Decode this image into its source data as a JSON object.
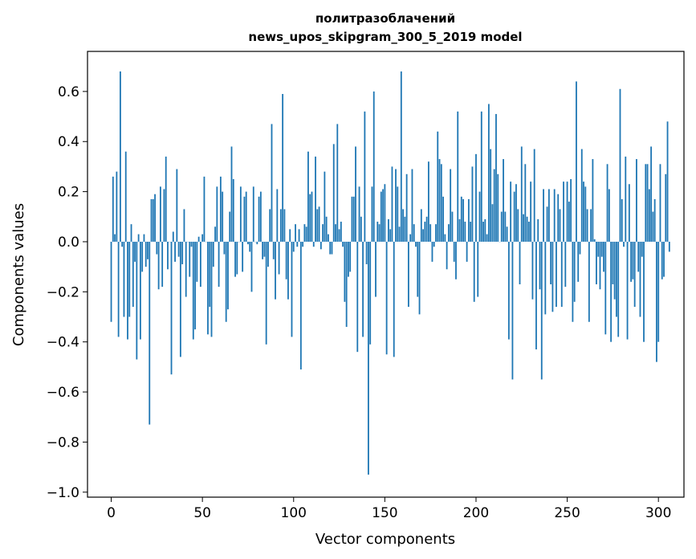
{
  "chart_data": {
    "type": "bar",
    "title": "политразоблачений",
    "subtitle": "news_upos_skipgram_300_5_2019 model",
    "xlabel": "Vector components",
    "ylabel": "Components values",
    "xlim": [
      -13,
      314
    ],
    "ylim": [
      -1.02,
      0.76
    ],
    "xticks": [
      0,
      50,
      100,
      150,
      200,
      250,
      300
    ],
    "xtick_labels": [
      "0",
      "50",
      "100",
      "150",
      "200",
      "250",
      "300"
    ],
    "yticks": [
      -1.0,
      -0.8,
      -0.6,
      -0.4,
      -0.2,
      0.0,
      0.2,
      0.4,
      0.6
    ],
    "ytick_labels": [
      "−1.0",
      "−0.8",
      "−0.6",
      "−0.4",
      "−0.2",
      "0.0",
      "0.2",
      "0.4",
      "0.6"
    ],
    "bar_color": "#1f77b4",
    "bar_width": 0.8,
    "values": [
      -0.32,
      0.26,
      0.03,
      0.28,
      -0.38,
      0.68,
      -0.02,
      -0.3,
      0.36,
      -0.39,
      -0.3,
      0.07,
      -0.26,
      -0.08,
      -0.47,
      0.03,
      -0.39,
      -0.12,
      0.03,
      -0.1,
      -0.07,
      -0.73,
      0.17,
      0.17,
      0.19,
      -0.05,
      -0.19,
      0.22,
      -0.18,
      0.21,
      0.34,
      -0.11,
      0.0,
      -0.53,
      0.04,
      -0.08,
      0.29,
      -0.06,
      -0.46,
      -0.09,
      0.13,
      -0.22,
      0.0,
      -0.14,
      -0.02,
      -0.39,
      -0.35,
      -0.16,
      0.02,
      -0.18,
      0.03,
      0.26,
      0.0,
      -0.37,
      -0.26,
      -0.38,
      -0.1,
      0.06,
      0.22,
      -0.18,
      0.26,
      0.2,
      -0.05,
      -0.32,
      -0.27,
      0.12,
      0.38,
      0.25,
      -0.14,
      -0.13,
      0.0,
      0.22,
      -0.12,
      0.18,
      0.2,
      -0.01,
      -0.04,
      -0.2,
      0.22,
      0.0,
      -0.01,
      0.18,
      0.2,
      -0.07,
      -0.06,
      -0.41,
      -0.1,
      0.13,
      0.47,
      -0.07,
      -0.23,
      0.21,
      -0.13,
      0.13,
      0.59,
      0.13,
      -0.15,
      -0.23,
      0.05,
      -0.38,
      -0.04,
      0.07,
      -0.02,
      0.05,
      -0.51,
      -0.02,
      0.07,
      0.06,
      0.36,
      0.19,
      0.2,
      -0.02,
      0.34,
      0.13,
      0.14,
      -0.03,
      0.07,
      0.28,
      0.1,
      0.03,
      -0.05,
      -0.05,
      0.39,
      0.07,
      0.47,
      0.05,
      0.08,
      -0.02,
      -0.24,
      -0.34,
      -0.14,
      -0.12,
      0.18,
      0.18,
      0.38,
      -0.44,
      0.22,
      0.1,
      -0.38,
      0.52,
      -0.09,
      -0.93,
      -0.41,
      0.22,
      0.6,
      -0.22,
      0.08,
      0.07,
      0.2,
      0.21,
      0.23,
      -0.45,
      0.09,
      0.05,
      0.3,
      -0.46,
      0.29,
      0.22,
      0.06,
      0.68,
      0.13,
      0.1,
      0.27,
      -0.26,
      0.03,
      0.29,
      0.07,
      -0.02,
      -0.22,
      -0.29,
      0.13,
      0.05,
      0.08,
      0.1,
      0.32,
      0.07,
      -0.08,
      -0.02,
      0.07,
      0.44,
      0.33,
      0.31,
      0.18,
      0.03,
      -0.11,
      0.07,
      0.29,
      0.12,
      -0.08,
      -0.15,
      0.52,
      0.09,
      0.18,
      0.17,
      0.08,
      -0.08,
      0.17,
      0.08,
      0.3,
      -0.24,
      0.35,
      -0.22,
      0.2,
      0.52,
      0.08,
      0.09,
      0.03,
      0.55,
      0.37,
      0.15,
      0.29,
      0.51,
      0.27,
      0.0,
      0.12,
      0.33,
      0.12,
      0.06,
      -0.39,
      0.24,
      -0.55,
      0.2,
      0.23,
      0.13,
      -0.17,
      0.38,
      0.11,
      0.31,
      0.1,
      0.08,
      0.24,
      -0.23,
      0.37,
      -0.43,
      0.09,
      -0.19,
      -0.55,
      0.21,
      -0.29,
      0.14,
      0.21,
      -0.17,
      -0.28,
      0.21,
      -0.26,
      0.19,
      0.13,
      -0.26,
      0.24,
      -0.18,
      0.24,
      0.16,
      0.25,
      -0.32,
      -0.24,
      0.64,
      -0.16,
      -0.05,
      0.37,
      0.24,
      0.22,
      0.13,
      -0.32,
      0.13,
      0.33,
      0.01,
      -0.17,
      -0.06,
      -0.19,
      -0.06,
      -0.12,
      -0.37,
      0.31,
      0.21,
      -0.4,
      -0.17,
      -0.23,
      -0.3,
      -0.38,
      0.61,
      0.17,
      -0.02,
      0.34,
      -0.39,
      0.23,
      -0.16,
      -0.15,
      -0.26,
      0.33,
      -0.12,
      -0.3,
      -0.06,
      -0.4,
      0.31,
      0.31,
      0.21,
      0.38,
      0.12,
      0.17,
      -0.48,
      -0.4,
      0.31,
      -0.15,
      -0.14,
      0.27,
      0.48,
      -0.04
    ]
  }
}
